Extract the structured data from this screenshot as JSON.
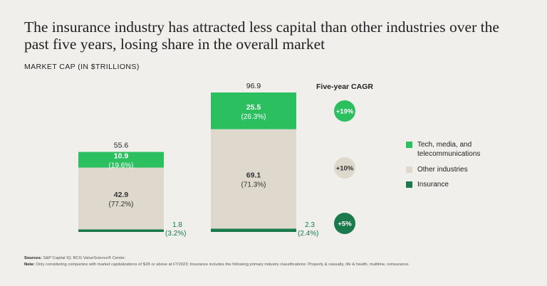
{
  "title": "The insurance industry has attracted less capital than other industries over the past five years, losing share in the overall market",
  "subtitle": "MARKET CAP (IN $TRILLIONS)",
  "colors": {
    "tmt": "#2bbf5f",
    "other": "#ded8cd",
    "insurance": "#1a7a4c",
    "background": "#f1efec"
  },
  "chart_data": {
    "type": "bar",
    "stacked": true,
    "categories": [
      "",
      ""
    ],
    "totals": [
      "55.6",
      "96.9"
    ],
    "series": [
      {
        "name": "Insurance",
        "key": "insurance",
        "values": [
          1.8,
          2.3
        ],
        "labels": [
          "1.8",
          "2.3"
        ],
        "shares": [
          "(3.2%)",
          "(2.4%)"
        ]
      },
      {
        "name": "Other industries",
        "key": "other",
        "values": [
          42.9,
          69.1
        ],
        "labels": [
          "42.9",
          "69.1"
        ],
        "shares": [
          "(77.2%)",
          "(71.3%)"
        ]
      },
      {
        "name": "Tech, media, and telecommunications",
        "key": "tmt",
        "values": [
          10.9,
          25.5
        ],
        "labels": [
          "10.9",
          "25.5"
        ],
        "shares": [
          "(19.6%)",
          "(26.3%)"
        ]
      }
    ],
    "cagr_title": "Five-year CAGR",
    "cagr": [
      {
        "key": "tmt",
        "label": "+19%"
      },
      {
        "key": "other",
        "label": "+10%"
      },
      {
        "key": "insurance",
        "label": "+5%"
      }
    ],
    "ylim": [
      0,
      96.9
    ],
    "xlabel": "",
    "ylabel": ""
  },
  "legend": [
    {
      "key": "tmt",
      "label": "Tech, media, and telecommunications"
    },
    {
      "key": "other",
      "label": "Other industries"
    },
    {
      "key": "insurance",
      "label": "Insurance"
    }
  ],
  "sources": {
    "sources_label": "Sources:",
    "sources_text": "S&P Capital IQ; BCG ValueScience® Center.",
    "note_label": "Note:",
    "note_text": "Only considering companies with market capitalizations of $1B or above at FY2023; Insurance includes the following primary industry classifications: Property & casualty, life & health, multiline, reinsurance."
  }
}
